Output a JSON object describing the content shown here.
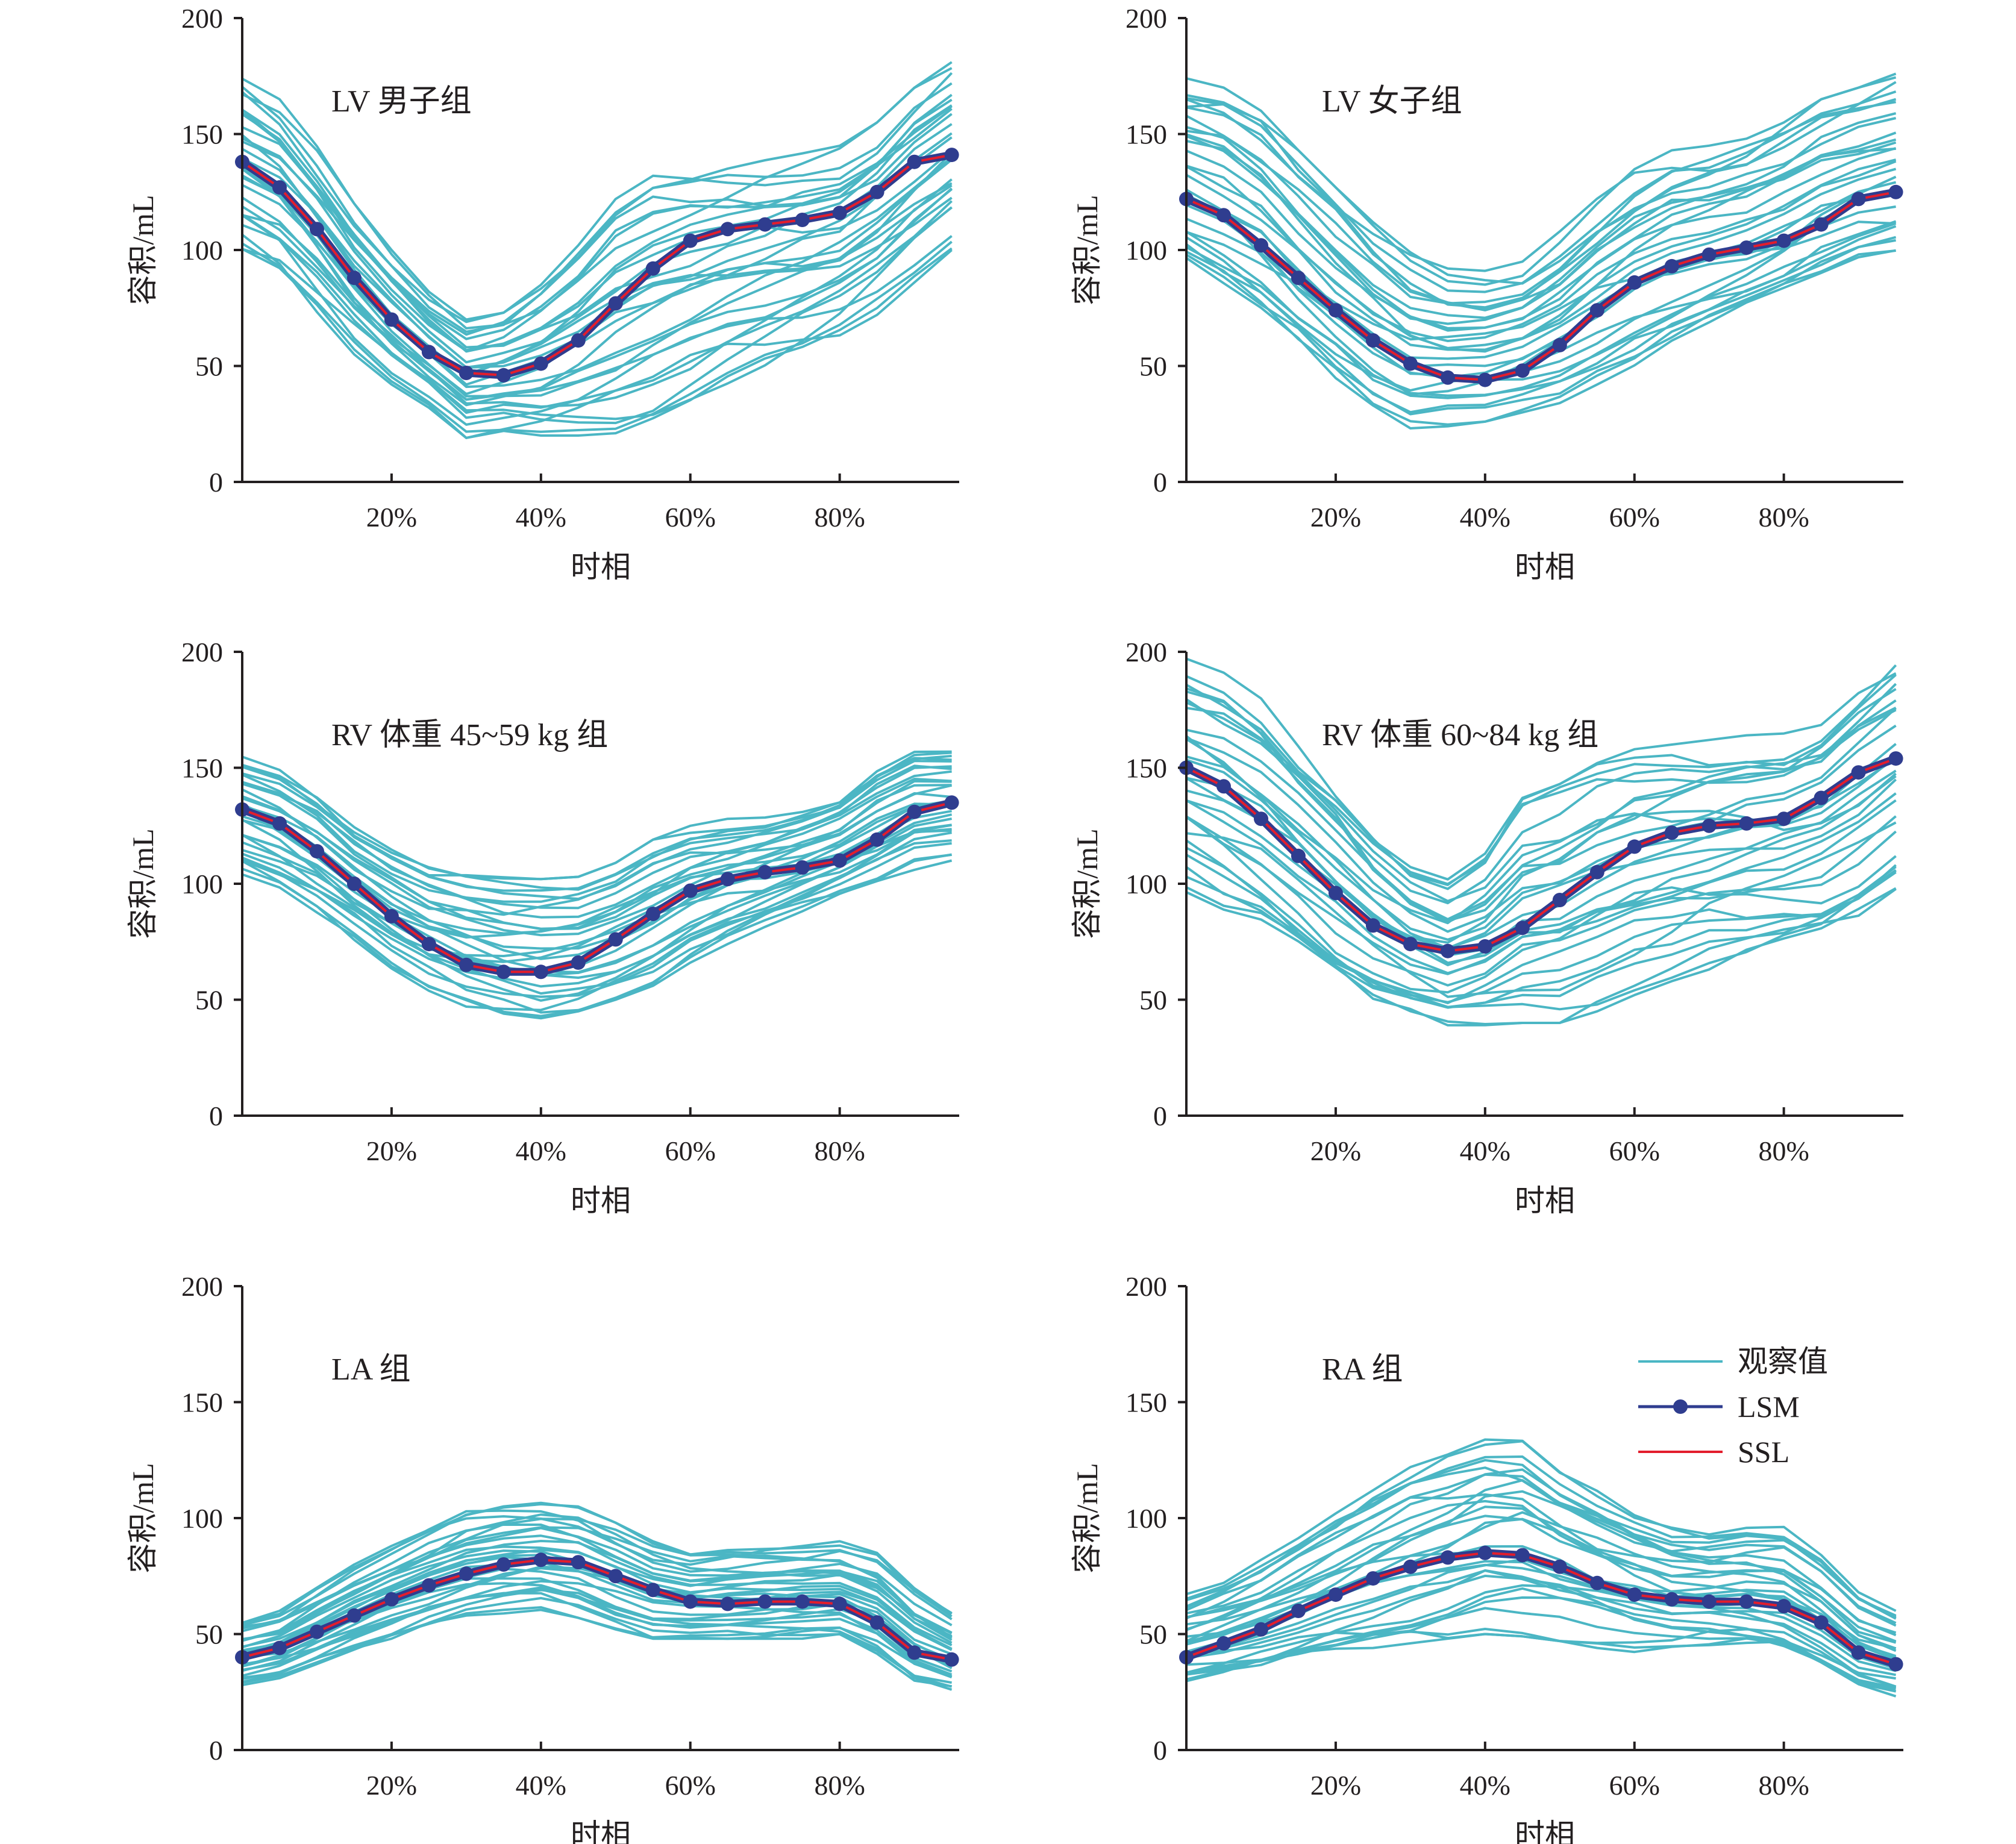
{
  "figure": {
    "legend": {
      "placement": "inside last panel, top-right",
      "items": [
        {
          "label": "观察值",
          "marker": "line",
          "color": "#4bb6c4"
        },
        {
          "label": "LSM",
          "marker": "line-dot",
          "color": "#2f3d8f"
        },
        {
          "label": "SSL",
          "marker": "line",
          "color": "#e31d2c"
        }
      ]
    },
    "colors": {
      "observed": "#4bb6c4",
      "lsm": "#2f3d8f",
      "ssl": "#e31d2c",
      "axis": "#231f20"
    }
  },
  "chart_data": [
    {
      "type": "line",
      "title": "LV 男子组",
      "xlabel": "时相",
      "ylabel": "容积/mL",
      "x": [
        0,
        5,
        10,
        15,
        20,
        25,
        30,
        35,
        40,
        45,
        50,
        55,
        60,
        65,
        70,
        75,
        80,
        85,
        90,
        95
      ],
      "xticks": [
        "20%",
        "40%",
        "60%",
        "80%"
      ],
      "xtick_values": [
        20,
        40,
        60,
        80
      ],
      "xlim": [
        0,
        96
      ],
      "ylim": [
        0,
        200
      ],
      "yticks": [
        0,
        50,
        100,
        150,
        200
      ],
      "grid": false,
      "series": [
        {
          "name": "LSM",
          "style": "line-dot",
          "values": [
            138,
            127,
            109,
            88,
            70,
            56,
            47,
            46,
            51,
            61,
            77,
            92,
            104,
            109,
            111,
            113,
            116,
            125,
            138,
            141
          ]
        },
        {
          "name": "SSL",
          "style": "line",
          "values": [
            138,
            127,
            109,
            88,
            70,
            56,
            47,
            46,
            51,
            61,
            77,
            92,
            104,
            109,
            111,
            113,
            116,
            125,
            138,
            141
          ]
        }
      ],
      "observed_envelope": {
        "series_name": "观察值",
        "low": [
          97,
          88,
          72,
          55,
          42,
          32,
          19,
          22,
          20,
          20,
          21,
          26,
          34,
          42,
          48,
          54,
          60,
          72,
          86,
          100
        ],
        "high": [
          177,
          165,
          145,
          120,
          100,
          82,
          70,
          73,
          85,
          102,
          122,
          132,
          136,
          138,
          140,
          142,
          145,
          155,
          170,
          181
        ]
      }
    },
    {
      "type": "line",
      "title": "LV 女子组",
      "xlabel": "时相",
      "ylabel": "容积/mL",
      "x": [
        0,
        5,
        10,
        15,
        20,
        25,
        30,
        35,
        40,
        45,
        50,
        55,
        60,
        65,
        70,
        75,
        80,
        85,
        90,
        95
      ],
      "xticks": [
        "20%",
        "40%",
        "60%",
        "80%"
      ],
      "xtick_values": [
        20,
        40,
        60,
        80
      ],
      "xlim": [
        0,
        96
      ],
      "ylim": [
        0,
        200
      ],
      "yticks": [
        0,
        50,
        100,
        150,
        200
      ],
      "grid": false,
      "series": [
        {
          "name": "LSM",
          "style": "line-dot",
          "values": [
            122,
            115,
            102,
            88,
            74,
            61,
            51,
            45,
            44,
            48,
            59,
            74,
            86,
            93,
            98,
            101,
            104,
            111,
            122,
            125
          ]
        },
        {
          "name": "SSL",
          "style": "line",
          "values": [
            122,
            115,
            102,
            88,
            74,
            61,
            51,
            45,
            44,
            48,
            59,
            74,
            86,
            93,
            98,
            101,
            104,
            111,
            122,
            125
          ]
        }
      ],
      "observed_envelope": {
        "series_name": "观察值",
        "low": [
          92,
          82,
          70,
          56,
          42,
          30,
          22,
          24,
          26,
          30,
          34,
          42,
          50,
          58,
          65,
          72,
          78,
          86,
          93,
          96
        ],
        "high": [
          174,
          170,
          160,
          143,
          127,
          112,
          99,
          92,
          91,
          95,
          108,
          123,
          136,
          143,
          145,
          148,
          155,
          165,
          170,
          176
        ]
      }
    },
    {
      "type": "line",
      "title": "RV 体重 45~59 kg 组",
      "xlabel": "时相",
      "ylabel": "容积/mL",
      "x": [
        0,
        5,
        10,
        15,
        20,
        25,
        30,
        35,
        40,
        45,
        50,
        55,
        60,
        65,
        70,
        75,
        80,
        85,
        90,
        95
      ],
      "xticks": [
        "20%",
        "40%",
        "60%",
        "80%"
      ],
      "xtick_values": [
        20,
        40,
        60,
        80
      ],
      "xlim": [
        0,
        96
      ],
      "ylim": [
        0,
        200
      ],
      "yticks": [
        0,
        50,
        100,
        150,
        200
      ],
      "grid": false,
      "series": [
        {
          "name": "LSM",
          "style": "line-dot",
          "values": [
            132,
            126,
            114,
            100,
            86,
            74,
            65,
            62,
            62,
            66,
            76,
            87,
            97,
            102,
            105,
            107,
            110,
            119,
            131,
            135
          ]
        },
        {
          "name": "SSL",
          "style": "line",
          "values": [
            132,
            126,
            114,
            100,
            86,
            74,
            65,
            62,
            62,
            66,
            76,
            87,
            97,
            102,
            105,
            107,
            110,
            119,
            131,
            135
          ]
        }
      ],
      "observed_envelope": {
        "series_name": "观察值",
        "low": [
          103,
          95,
          85,
          74,
          62,
          53,
          47,
          44,
          42,
          45,
          50,
          56,
          66,
          74,
          80,
          86,
          92,
          98,
          106,
          110
        ],
        "high": [
          157,
          152,
          142,
          128,
          118,
          110,
          106,
          103,
          102,
          103,
          109,
          119,
          125,
          128,
          130,
          134,
          140,
          153,
          161,
          160
        ]
      }
    },
    {
      "type": "line",
      "title": "RV 体重 60~84 kg 组",
      "xlabel": "时相",
      "ylabel": "容积/mL",
      "x": [
        0,
        5,
        10,
        15,
        20,
        25,
        30,
        35,
        40,
        45,
        50,
        55,
        60,
        65,
        70,
        75,
        80,
        85,
        90,
        95
      ],
      "xticks": [
        "20%",
        "40%",
        "60%",
        "80%"
      ],
      "xtick_values": [
        20,
        40,
        60,
        80
      ],
      "xlim": [
        0,
        96
      ],
      "ylim": [
        0,
        200
      ],
      "yticks": [
        0,
        50,
        100,
        150,
        200
      ],
      "grid": false,
      "series": [
        {
          "name": "LSM",
          "style": "line-dot",
          "values": [
            150,
            142,
            128,
            112,
            96,
            82,
            74,
            71,
            73,
            81,
            93,
            105,
            116,
            122,
            125,
            126,
            128,
            137,
            148,
            154
          ]
        },
        {
          "name": "SSL",
          "style": "line",
          "values": [
            150,
            142,
            128,
            112,
            96,
            82,
            74,
            71,
            73,
            81,
            93,
            105,
            116,
            122,
            125,
            126,
            128,
            137,
            148,
            154
          ]
        }
      ],
      "observed_envelope": {
        "series_name": "观察值",
        "low": [
          95,
          86,
          78,
          67,
          56,
          47,
          42,
          38,
          39,
          40,
          40,
          45,
          52,
          58,
          63,
          67,
          70,
          74,
          80,
          92
        ],
        "high": [
          197,
          192,
          180,
          162,
          145,
          125,
          110,
          102,
          113,
          137,
          143,
          152,
          158,
          160,
          162,
          164,
          165,
          172,
          188,
          200
        ]
      }
    },
    {
      "type": "line",
      "title": "LA 组",
      "xlabel": "时相",
      "ylabel": "容积/mL",
      "x": [
        0,
        5,
        10,
        15,
        20,
        25,
        30,
        35,
        40,
        45,
        50,
        55,
        60,
        65,
        70,
        75,
        80,
        85,
        90,
        95
      ],
      "xticks": [
        "20%",
        "40%",
        "60%",
        "80%"
      ],
      "xtick_values": [
        20,
        40,
        60,
        80
      ],
      "xlim": [
        0,
        96
      ],
      "ylim": [
        0,
        200
      ],
      "yticks": [
        0,
        50,
        100,
        150,
        200
      ],
      "grid": false,
      "series": [
        {
          "name": "LSM",
          "style": "line-dot",
          "values": [
            40,
            44,
            51,
            58,
            65,
            71,
            76,
            80,
            82,
            81,
            75,
            69,
            64,
            63,
            64,
            64,
            63,
            55,
            42,
            39
          ]
        },
        {
          "name": "SSL",
          "style": "line",
          "values": [
            40,
            44,
            51,
            58,
            65,
            71,
            76,
            80,
            82,
            81,
            75,
            69,
            64,
            63,
            64,
            64,
            63,
            55,
            42,
            39
          ]
        }
      ],
      "observed_envelope": {
        "series_name": "观察值",
        "low": [
          28,
          31,
          36,
          41,
          46,
          51,
          55,
          58,
          60,
          57,
          52,
          48,
          48,
          48,
          48,
          48,
          48,
          40,
          28,
          24
        ],
        "high": [
          56,
          60,
          70,
          80,
          88,
          96,
          103,
          106,
          107,
          105,
          98,
          90,
          85,
          87,
          88,
          89,
          90,
          85,
          70,
          59
        ]
      }
    },
    {
      "type": "line",
      "title": "RA 组",
      "xlabel": "时相",
      "ylabel": "容积/mL",
      "x": [
        0,
        5,
        10,
        15,
        20,
        25,
        30,
        35,
        40,
        45,
        50,
        55,
        60,
        65,
        70,
        75,
        80,
        85,
        90,
        95
      ],
      "xticks": [
        "20%",
        "40%",
        "60%",
        "80%"
      ],
      "xtick_values": [
        20,
        40,
        60,
        80
      ],
      "xlim": [
        0,
        96
      ],
      "ylim": [
        0,
        200
      ],
      "yticks": [
        0,
        50,
        100,
        150,
        200
      ],
      "grid": false,
      "series": [
        {
          "name": "LSM",
          "style": "line-dot",
          "values": [
            40,
            46,
            52,
            60,
            67,
            74,
            79,
            83,
            85,
            84,
            79,
            72,
            67,
            65,
            64,
            64,
            62,
            55,
            42,
            37
          ]
        },
        {
          "name": "SSL",
          "style": "line",
          "values": [
            40,
            46,
            52,
            60,
            67,
            74,
            79,
            83,
            85,
            84,
            79,
            72,
            67,
            65,
            64,
            64,
            62,
            55,
            42,
            37
          ]
        }
      ],
      "observed_envelope": {
        "series_name": "观察值",
        "low": [
          27,
          30,
          33,
          37,
          41,
          44,
          46,
          48,
          50,
          49,
          47,
          44,
          42,
          41,
          42,
          42,
          40,
          34,
          26,
          23
        ],
        "high": [
          68,
          74,
          82,
          92,
          102,
          112,
          122,
          128,
          134,
          134,
          122,
          112,
          104,
          98,
          96,
          98,
          97,
          85,
          68,
          60
        ]
      },
      "legend": true
    }
  ]
}
